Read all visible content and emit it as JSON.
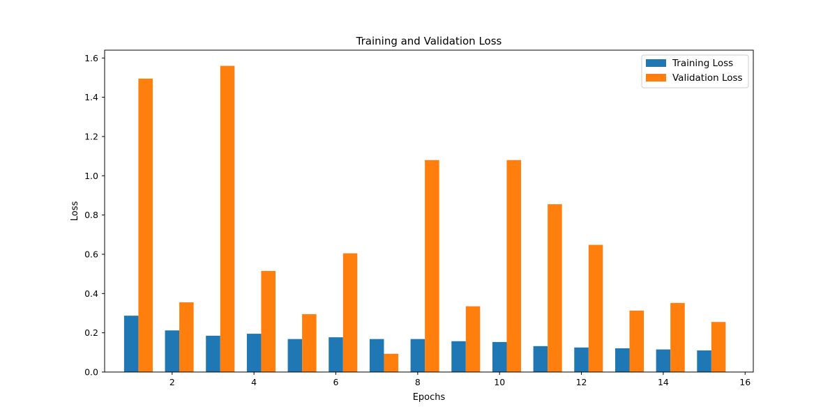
{
  "chart_data": {
    "type": "bar",
    "title": "Training and Validation Loss",
    "xlabel": "Epochs",
    "ylabel": "Loss",
    "x": [
      1,
      2,
      3,
      4,
      5,
      6,
      7,
      8,
      9,
      10,
      11,
      12,
      13,
      14,
      15
    ],
    "xlim": [
      0.35,
      16.2
    ],
    "ylim": [
      0,
      1.64
    ],
    "xticks": [
      2,
      4,
      6,
      8,
      10,
      12,
      14,
      16
    ],
    "yticks": [
      0.0,
      0.2,
      0.4,
      0.6,
      0.8,
      1.0,
      1.2,
      1.4,
      1.6
    ],
    "xtick_labels": [
      "2",
      "4",
      "6",
      "8",
      "10",
      "12",
      "14",
      "16"
    ],
    "ytick_labels": [
      "0.0",
      "0.2",
      "0.4",
      "0.6",
      "0.8",
      "1.0",
      "1.2",
      "1.4",
      "1.6"
    ],
    "legend_position": "top-right",
    "grid": false,
    "series": [
      {
        "name": "Training Loss",
        "color": "#1f77b4",
        "values": [
          0.287,
          0.212,
          0.185,
          0.195,
          0.168,
          0.177,
          0.168,
          0.168,
          0.157,
          0.153,
          0.132,
          0.125,
          0.121,
          0.115,
          0.11
        ]
      },
      {
        "name": "Validation Loss",
        "color": "#ff7f0e",
        "values": [
          1.495,
          0.355,
          1.56,
          0.515,
          0.295,
          0.605,
          0.093,
          1.08,
          0.335,
          1.08,
          0.855,
          0.648,
          0.313,
          0.352,
          0.255
        ]
      }
    ]
  }
}
